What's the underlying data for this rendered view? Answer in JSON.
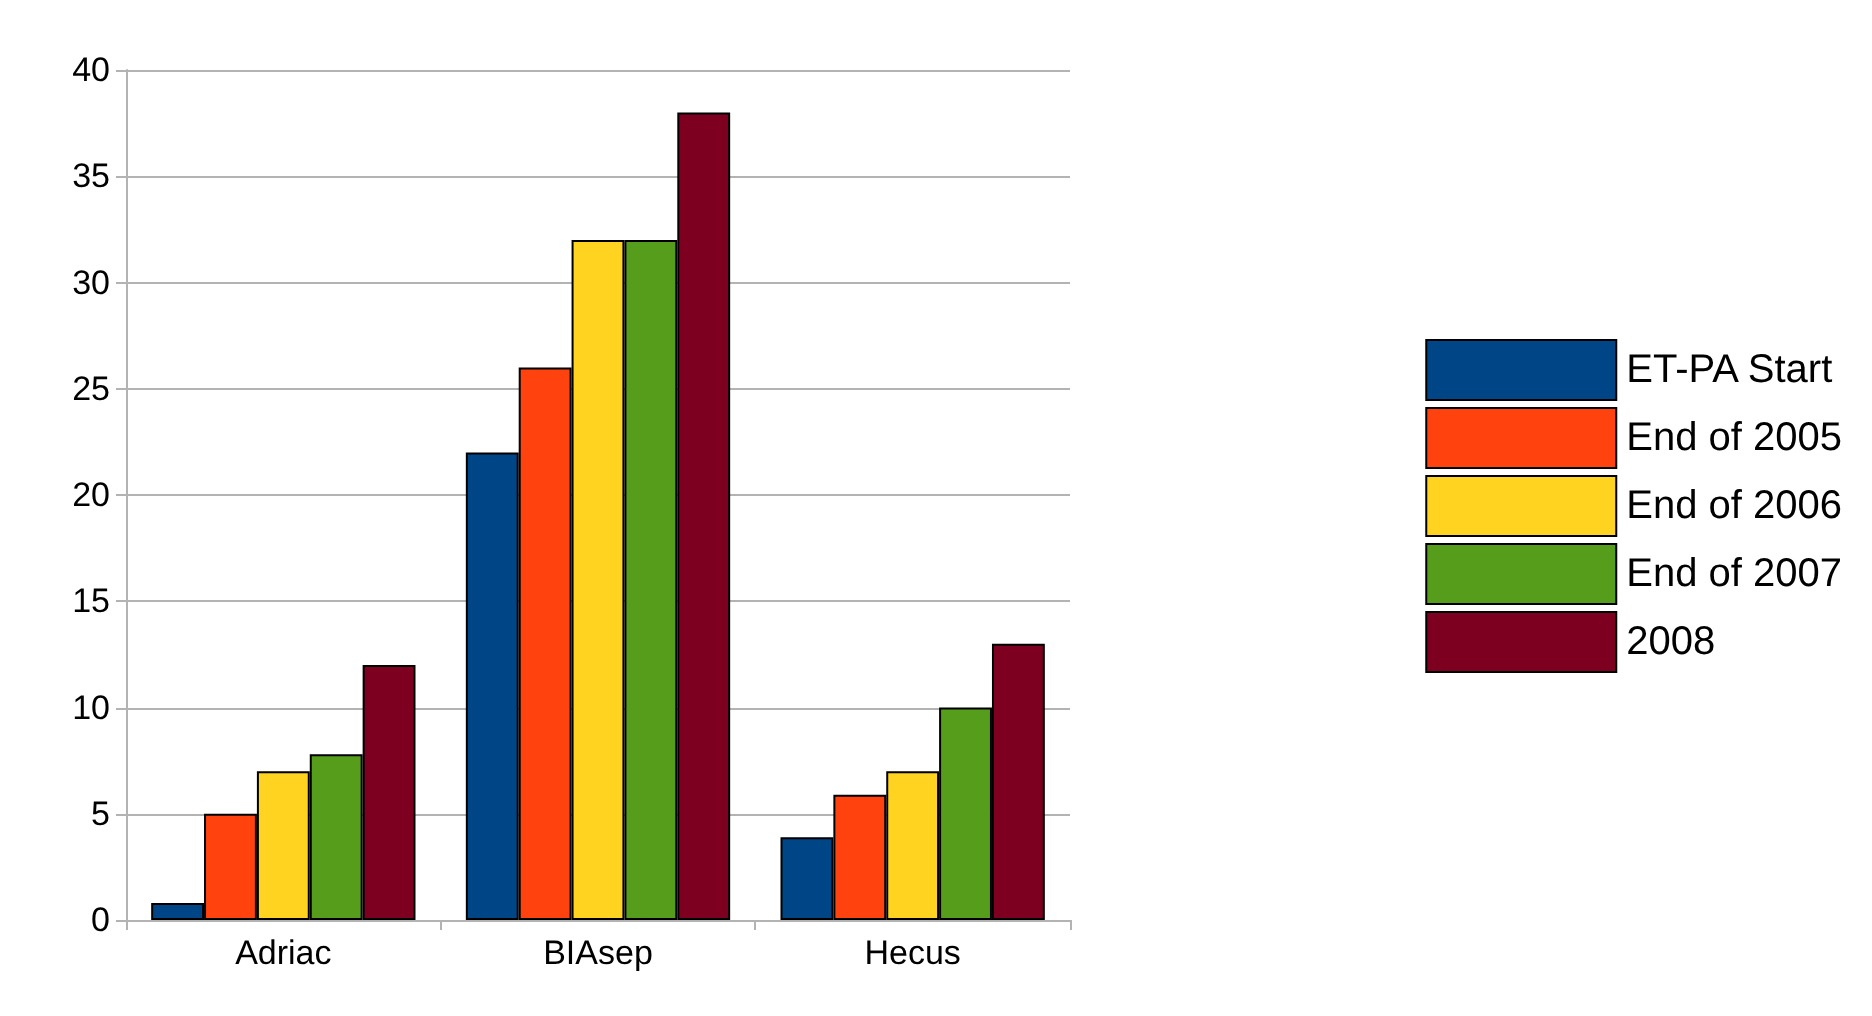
{
  "chart_data": {
    "type": "bar",
    "categories": [
      "Adriac",
      "BIAsep",
      "Hecus"
    ],
    "series": [
      {
        "name": "ET-PA Start",
        "color": "#004586",
        "values": [
          0.8,
          22,
          3.9
        ]
      },
      {
        "name": "End of 2005",
        "color": "#ff420e",
        "values": [
          5,
          26,
          5.9
        ]
      },
      {
        "name": "End of 2006",
        "color": "#ffd320",
        "values": [
          7,
          32,
          7
        ]
      },
      {
        "name": "End of 2007",
        "color": "#579d1c",
        "values": [
          7.8,
          32,
          10
        ]
      },
      {
        "name": "2008",
        "color": "#7e0021",
        "values": [
          12,
          38,
          13
        ]
      }
    ],
    "ylim": [
      0,
      40
    ],
    "yticks": [
      0,
      5,
      10,
      15,
      20,
      25,
      30,
      35,
      40
    ],
    "grid": "y",
    "legend": "right"
  }
}
